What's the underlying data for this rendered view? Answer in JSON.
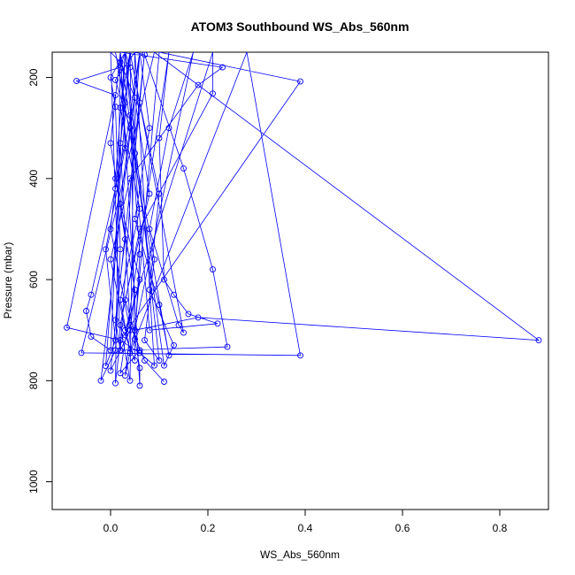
{
  "chart_data": {
    "type": "line",
    "title": "ATOM3 Southbound WS_Abs_560nm",
    "xlabel": "WS_Abs_560nm",
    "ylabel": "Pressure (mbar)",
    "xlim": [
      -0.12,
      0.9
    ],
    "ylim": [
      1055,
      150
    ],
    "y_reversed": true,
    "grid": false,
    "legend": "none",
    "x_ticks": [
      0.0,
      0.2,
      0.4,
      0.6,
      0.8
    ],
    "x_tick_labels": [
      "0.0",
      "0.2",
      "0.4",
      "0.6",
      "0.8"
    ],
    "y_ticks": [
      200,
      400,
      600,
      800,
      1000
    ],
    "y_tick_labels": [
      "200",
      "400",
      "600",
      "800",
      "1000"
    ],
    "series_color": "#0000ff",
    "series": [
      {
        "points": [
          [
            0.03,
            150
          ],
          [
            0.02,
            180
          ],
          [
            -0.07,
            207
          ],
          [
            0.01,
            235
          ],
          [
            -0.09,
            695
          ],
          [
            0.02,
            720
          ],
          [
            0.06,
            745
          ],
          [
            0.09,
            770
          ],
          [
            0.05,
            150
          ],
          [
            0.01,
            205
          ],
          [
            0.04,
            300
          ],
          [
            0.02,
            450
          ],
          [
            0.06,
            600
          ],
          [
            0.03,
            710
          ],
          [
            0.05,
            760
          ],
          [
            0.04,
            150
          ],
          [
            0.06,
            250
          ],
          [
            0.1,
            430
          ],
          [
            0.08,
            620
          ],
          [
            0.13,
            730
          ],
          [
            0.11,
            770
          ],
          [
            0.02,
            150
          ],
          [
            0.0,
            330
          ],
          [
            0.03,
            520
          ],
          [
            0.01,
            680
          ],
          [
            0.02,
            740
          ],
          [
            0.06,
            150
          ],
          [
            0.08,
            300
          ],
          [
            0.05,
            480
          ],
          [
            0.1,
            650
          ],
          [
            0.12,
            750
          ],
          [
            0.01,
            150
          ],
          [
            0.03,
            250
          ],
          [
            0.0,
            500
          ],
          [
            0.04,
            700
          ],
          [
            0.0,
            780
          ],
          [
            0.07,
            150
          ],
          [
            0.05,
            350
          ],
          [
            0.09,
            560
          ],
          [
            0.07,
            720
          ],
          [
            0.1,
            760
          ],
          [
            0.03,
            150
          ],
          [
            0.01,
            400
          ],
          [
            0.05,
            620
          ],
          [
            0.03,
            790
          ],
          [
            0.17,
            150
          ],
          [
            0.12,
            300
          ],
          [
            0.08,
            500
          ],
          [
            0.14,
            690
          ],
          [
            0.15,
            705
          ],
          [
            0.04,
            150
          ],
          [
            0.02,
            260
          ],
          [
            0.06,
            460
          ],
          [
            0.02,
            640
          ],
          [
            0.04,
            745
          ],
          [
            0.28,
            150
          ],
          [
            0.39,
            750
          ],
          [
            -0.06,
            745
          ],
          [
            0.09,
            150
          ],
          [
            0.88,
            720
          ],
          [
            0.18,
            675
          ],
          [
            0.05,
            700
          ],
          [
            0.1,
            150
          ],
          [
            0.39,
            208
          ],
          [
            0.02,
            720
          ],
          [
            0.01,
            805
          ],
          [
            0.02,
            150
          ],
          [
            0.23,
            180
          ],
          [
            0.18,
            215
          ],
          [
            0.04,
            400
          ],
          [
            0.0,
            560
          ],
          [
            0.03,
            700
          ],
          [
            0.21,
            150
          ],
          [
            0.21,
            232
          ],
          [
            0.06,
            500
          ],
          [
            0.02,
            690
          ],
          [
            0.04,
            800
          ],
          [
            0.05,
            150
          ],
          [
            0.07,
            155
          ],
          [
            0.15,
            380
          ],
          [
            0.21,
            580
          ],
          [
            0.24,
            733
          ],
          [
            0.02,
            740
          ],
          [
            0.0,
            150
          ],
          [
            0.02,
            170
          ],
          [
            0.05,
            240
          ],
          [
            0.01,
            420
          ],
          [
            -0.04,
            630
          ],
          [
            -0.05,
            662
          ],
          [
            -0.04,
            713
          ],
          [
            0.0,
            740
          ],
          [
            0.03,
            150
          ],
          [
            0.04,
            180
          ],
          [
            0.08,
            430
          ],
          [
            0.03,
            640
          ],
          [
            0.06,
            740
          ],
          [
            0.02,
            785
          ],
          [
            0.12,
            150
          ],
          [
            0.1,
            320
          ],
          [
            0.11,
            600
          ],
          [
            0.13,
            630
          ],
          [
            0.16,
            668
          ],
          [
            0.22,
            687
          ],
          [
            0.08,
            700
          ],
          [
            0.03,
            150
          ],
          [
            0.0,
            200
          ],
          [
            0.01,
            258
          ],
          [
            0.02,
            540
          ],
          [
            0.01,
            740
          ],
          [
            -0.02,
            800
          ],
          [
            0.06,
            150
          ],
          [
            0.04,
            275
          ],
          [
            0.06,
            550
          ],
          [
            0.05,
            718
          ],
          [
            0.06,
            775
          ],
          [
            0.06,
            810
          ],
          [
            0.02,
            150
          ],
          [
            0.03,
            340
          ],
          [
            -0.01,
            540
          ],
          [
            0.01,
            720
          ],
          [
            -0.01,
            771
          ],
          [
            0.04,
            150
          ],
          [
            0.02,
            330
          ],
          [
            0.04,
            690
          ],
          [
            0.07,
            760
          ],
          [
            0.11,
            802
          ]
        ]
      }
    ]
  }
}
